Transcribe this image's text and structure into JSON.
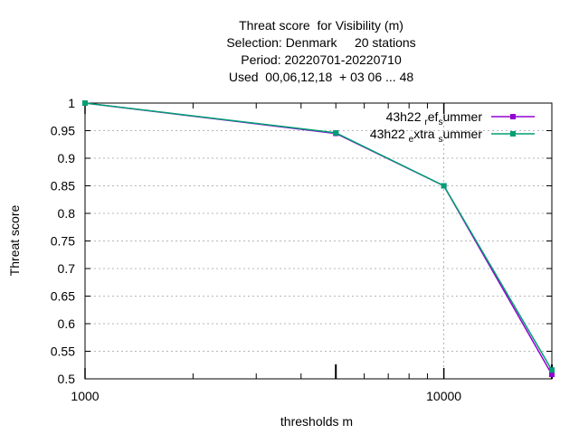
{
  "chart_data": {
    "type": "line",
    "title_lines": [
      "Threat score  for Visibility (m)",
      "Selection: Denmark     20 stations",
      "Period: 20220701-20220710",
      "Used  00,06,12,18  + 03 06 ... 48"
    ],
    "xlabel": "thresholds m",
    "ylabel": "Threat score",
    "x_scale": "log",
    "xlim": [
      1000,
      20000
    ],
    "ylim": [
      0.5,
      1.0
    ],
    "x_ticks": [
      1000,
      10000
    ],
    "x_tick_labels": [
      "1000",
      "10000"
    ],
    "x_minor_ticks": [
      5000,
      20000
    ],
    "y_ticks": [
      0.5,
      0.55,
      0.6,
      0.65,
      0.7,
      0.75,
      0.8,
      0.85,
      0.9,
      0.95,
      1.0
    ],
    "y_tick_labels": [
      "0.5",
      "0.55",
      "0.6",
      "0.65",
      "0.7",
      "0.75",
      "0.8",
      "0.85",
      "0.9",
      "0.95",
      "1"
    ],
    "grid": true,
    "legend_position": "top-right",
    "series": [
      {
        "name": "43h22 _ref_summer",
        "legend_parts": [
          [
            "43h22 ",
            "n"
          ],
          [
            "r",
            "sub"
          ],
          [
            "ef",
            "n"
          ],
          [
            "s",
            "sub"
          ],
          [
            "ummer",
            "n"
          ]
        ],
        "color": "#9400d3",
        "marker": "square",
        "x": [
          1000,
          5000,
          10000,
          20000
        ],
        "y": [
          1.0,
          0.945,
          0.85,
          0.508
        ]
      },
      {
        "name": "43h22 _extra_summer",
        "legend_parts": [
          [
            "43h22 ",
            "n"
          ],
          [
            "e",
            "sub"
          ],
          [
            "xtra ",
            "n"
          ],
          [
            "s",
            "sub"
          ],
          [
            "ummer",
            "n"
          ]
        ],
        "color": "#009e73",
        "marker": "square",
        "x": [
          1000,
          5000,
          10000,
          20000
        ],
        "y": [
          1.0,
          0.946,
          0.85,
          0.516
        ]
      }
    ]
  }
}
